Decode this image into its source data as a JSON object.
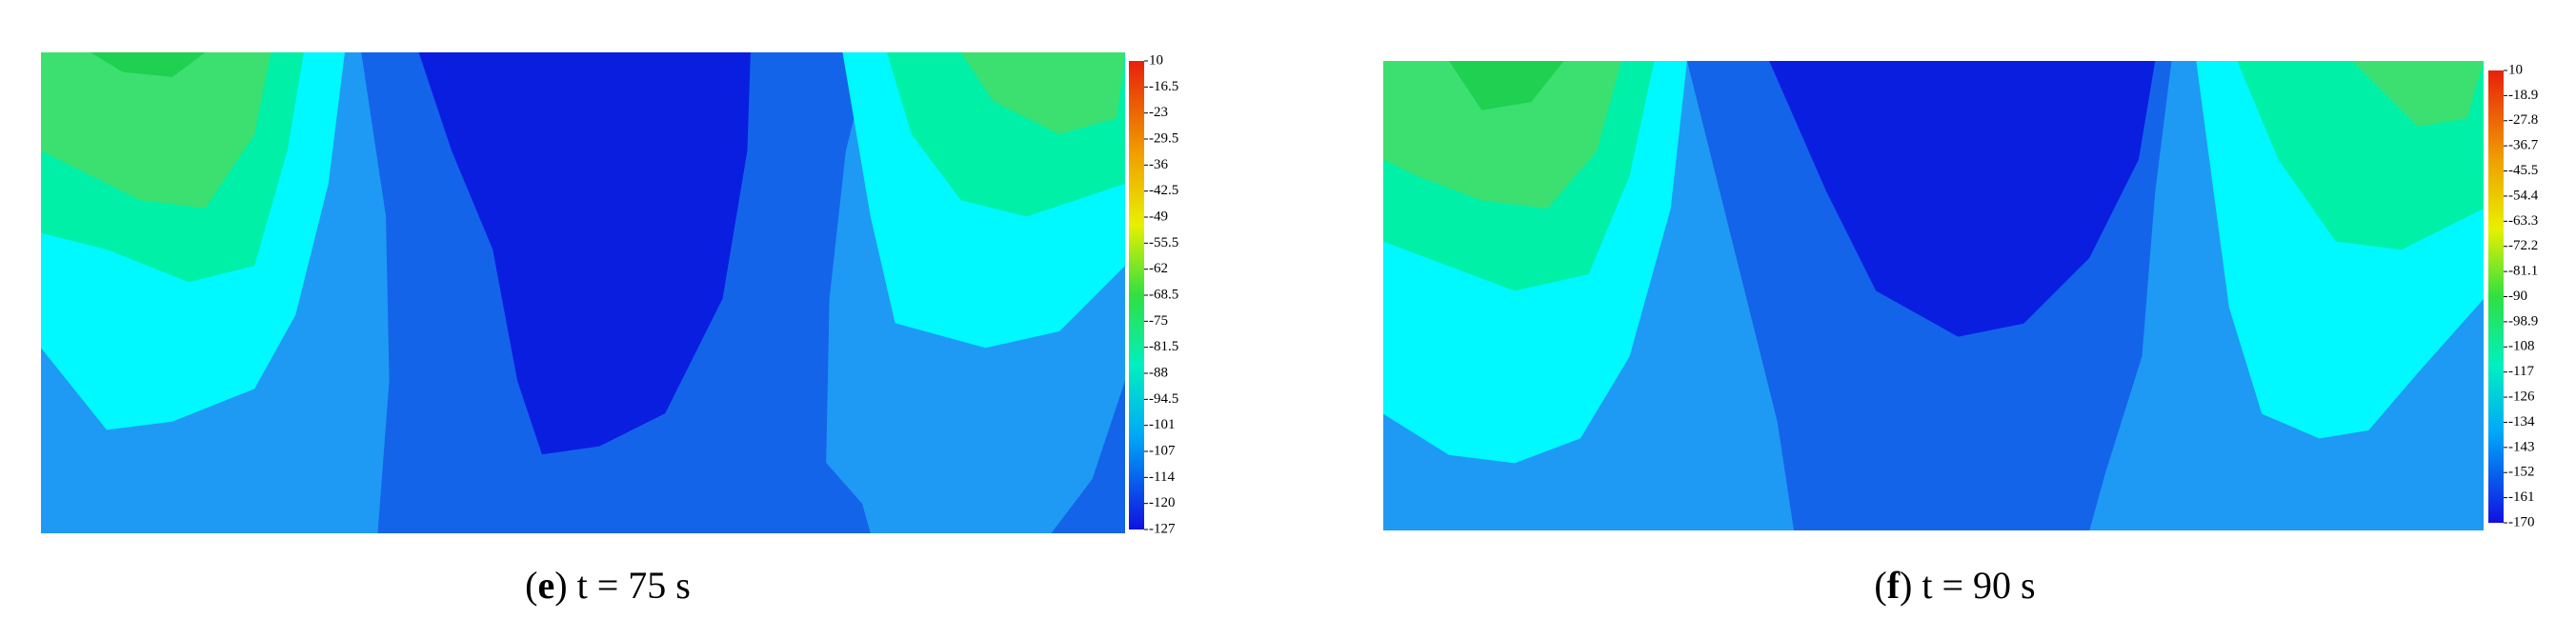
{
  "chart_data": [
    {
      "type": "contour",
      "caption": {
        "open": "(",
        "panel": "e",
        "text": ") t = 75 s"
      },
      "colorbar_ticks": [
        10,
        -16.5,
        -23,
        -29.5,
        -36,
        -42.5,
        -49,
        -55.5,
        -62,
        -68.5,
        -75,
        -81.5,
        -88,
        -94.5,
        -101,
        -107,
        -114,
        -120,
        -127
      ]
    },
    {
      "type": "contour",
      "caption": {
        "open": "(",
        "panel": "f",
        "text": ") t = 90 s"
      },
      "colorbar_ticks": [
        10,
        -18.9,
        -27.8,
        -36.7,
        -45.5,
        -54.4,
        -63.3,
        -72.2,
        -81.1,
        -90,
        -98.9,
        -108,
        -117,
        -126,
        -134,
        -143,
        -152,
        -161,
        -170
      ]
    }
  ]
}
